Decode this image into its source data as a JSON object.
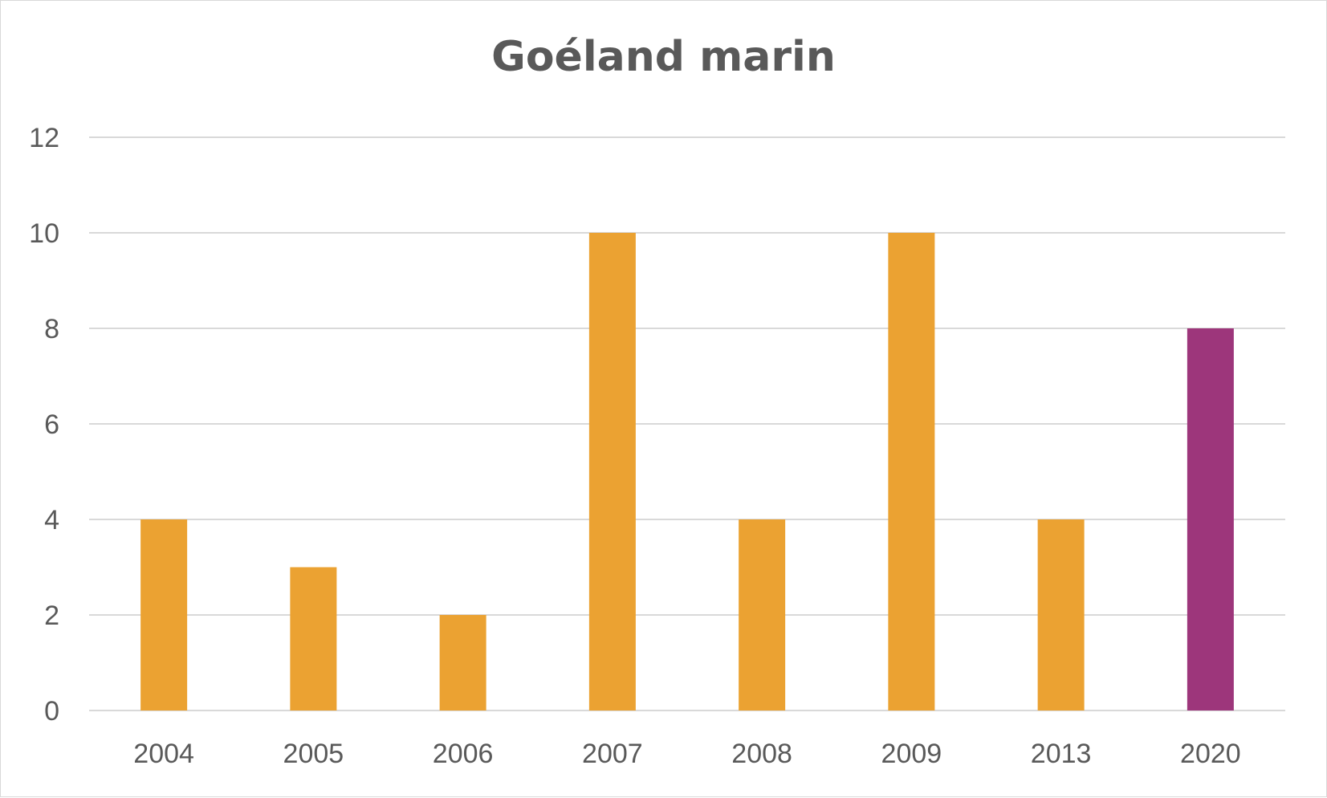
{
  "chart_data": {
    "type": "bar",
    "title": "Goéland marin",
    "categories": [
      "2004",
      "2005",
      "2006",
      "2007",
      "2008",
      "2009",
      "2013",
      "2020"
    ],
    "values": [
      4,
      3,
      2,
      10,
      4,
      10,
      4,
      8
    ],
    "bar_colors": [
      "#EBA232",
      "#EBA232",
      "#EBA232",
      "#EBA232",
      "#EBA232",
      "#EBA232",
      "#EBA232",
      "#9D367B"
    ],
    "ylim": [
      0,
      12
    ],
    "yticks": [
      "0",
      "2",
      "4",
      "6",
      "8",
      "10",
      "12"
    ],
    "grid": true,
    "colors": {
      "bar_default": "#EBA232",
      "bar_highlight": "#9D367B",
      "grid": "#d9d9d9",
      "text": "#595959"
    }
  }
}
